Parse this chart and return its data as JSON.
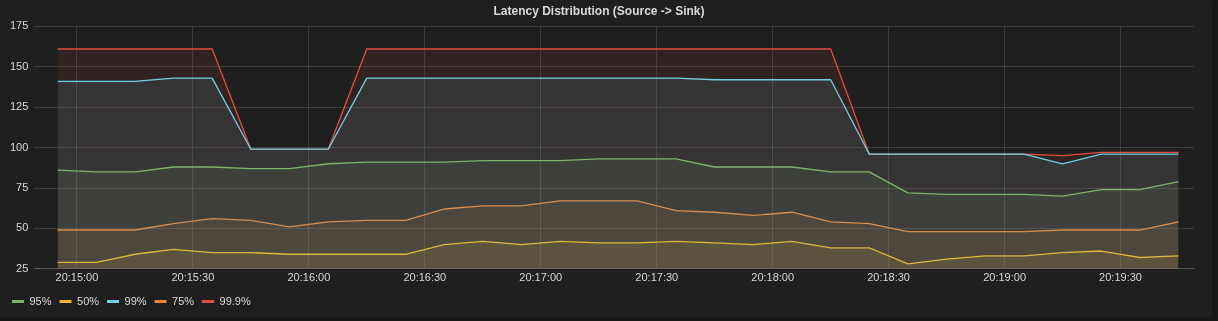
{
  "chart_data": {
    "type": "area",
    "title": "Latency Distribution (Source -> Sink)",
    "x": [
      20.24861,
      20.25139,
      20.25417,
      20.25694,
      20.25972,
      20.2625,
      20.26528,
      20.26806,
      20.27083,
      20.27361,
      20.27639,
      20.27917,
      20.28194,
      20.28472,
      20.2875,
      20.29028,
      20.29306,
      20.29583,
      20.29861,
      20.30139,
      20.30417,
      20.30694,
      20.30972,
      20.3125,
      20.31528,
      20.31806,
      20.32083,
      20.32361,
      20.32639,
      20.32917
    ],
    "series": [
      {
        "name": "95%",
        "color": "#7eb26d",
        "values": [
          86,
          85,
          85,
          88,
          88,
          87,
          87,
          90,
          91,
          91,
          91,
          92,
          92,
          92,
          93,
          93,
          93,
          88,
          88,
          88,
          85,
          85,
          72,
          71,
          71,
          71,
          70,
          74,
          74,
          79
        ]
      },
      {
        "name": "50%",
        "color": "#eab839",
        "values": [
          29,
          29,
          34,
          37,
          35,
          35,
          34,
          34,
          34,
          34,
          40,
          42,
          40,
          42,
          41,
          41,
          42,
          41,
          40,
          42,
          38,
          38,
          28,
          31,
          33,
          33,
          35,
          36,
          32,
          33
        ]
      },
      {
        "name": "99%",
        "color": "#6ed0e0",
        "values": [
          141,
          141,
          141,
          143,
          143,
          99,
          99,
          99,
          143,
          143,
          143,
          143,
          143,
          143,
          143,
          143,
          143,
          142,
          142,
          142,
          142,
          96,
          96,
          96,
          96,
          96,
          90,
          96,
          96,
          96
        ]
      },
      {
        "name": "75%",
        "color": "#ef843c",
        "values": [
          49,
          49,
          49,
          53,
          56,
          55,
          51,
          54,
          55,
          55,
          62,
          64,
          64,
          67,
          67,
          67,
          61,
          60,
          58,
          60,
          54,
          53,
          48,
          48,
          48,
          48,
          49,
          49,
          49,
          54
        ]
      },
      {
        "name": "99.9%",
        "color": "#e24d42",
        "values": [
          161,
          161,
          161,
          161,
          161,
          99,
          99,
          99,
          161,
          161,
          161,
          161,
          161,
          161,
          161,
          161,
          161,
          161,
          161,
          161,
          161,
          96,
          96,
          96,
          96,
          96,
          95,
          97,
          97,
          97
        ]
      }
    ],
    "xlim": [
      20.24694,
      20.33028
    ],
    "xticks": [
      {
        "value": 20.25,
        "label": "20:15:00"
      },
      {
        "value": 20.25833,
        "label": "20:15:30"
      },
      {
        "value": 20.26667,
        "label": "20:16:00"
      },
      {
        "value": 20.275,
        "label": "20:16:30"
      },
      {
        "value": 20.28333,
        "label": "20:17:00"
      },
      {
        "value": 20.29167,
        "label": "20:17:30"
      },
      {
        "value": 20.3,
        "label": "20:18:00"
      },
      {
        "value": 20.30833,
        "label": "20:18:30"
      },
      {
        "value": 20.31667,
        "label": "20:19:00"
      },
      {
        "value": 20.325,
        "label": "20:19:30"
      }
    ],
    "ylim": [
      25,
      175
    ],
    "yticks": [
      25,
      50,
      75,
      100,
      125,
      150,
      175
    ],
    "grid": true,
    "legend": "bottom left",
    "marker": "none",
    "line_style": "solid"
  }
}
